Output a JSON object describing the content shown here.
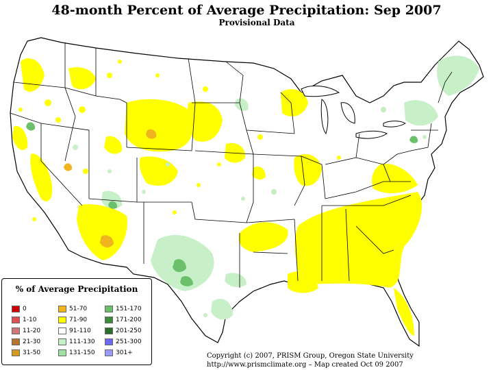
{
  "header": {
    "title": "48-month Percent of Average Precipitation: Sep 2007",
    "subtitle": "Provisional Data"
  },
  "legend": {
    "title": "% of Average Precipitation",
    "items": [
      {
        "label": "0",
        "color": "#cc0000"
      },
      {
        "label": "1-10",
        "color": "#e05050"
      },
      {
        "label": "11-20",
        "color": "#d07878"
      },
      {
        "label": "21-30",
        "color": "#b8732e"
      },
      {
        "label": "31-50",
        "color": "#d59a1e"
      },
      {
        "label": "51-70",
        "color": "#f0b41e"
      },
      {
        "label": "71-90",
        "color": "#ffff00"
      },
      {
        "label": "91-110",
        "color": "#ffffff"
      },
      {
        "label": "111-130",
        "color": "#c8f0c8"
      },
      {
        "label": "131-150",
        "color": "#a0e0a0"
      },
      {
        "label": "151-170",
        "color": "#6cc06c"
      },
      {
        "label": "171-200",
        "color": "#3c8c3c"
      },
      {
        "label": "201-250",
        "color": "#2d6e2d"
      },
      {
        "label": "251-300",
        "color": "#6a6af0"
      },
      {
        "label": "301+",
        "color": "#9a9af8"
      }
    ]
  },
  "footer": {
    "copyright": "Copyright (c) 2007, PRISM Group, Oregon State University",
    "credit": "http://www.prismclimate.org  –  Map created Oct 09 2007"
  },
  "map_colors": {
    "dry": "#ffff00",
    "very_dry": "#f0b41e",
    "wet": "#c8f0c8",
    "wetter": "#a0e0a0",
    "wettest": "#6cc06c",
    "border": "#000000"
  }
}
